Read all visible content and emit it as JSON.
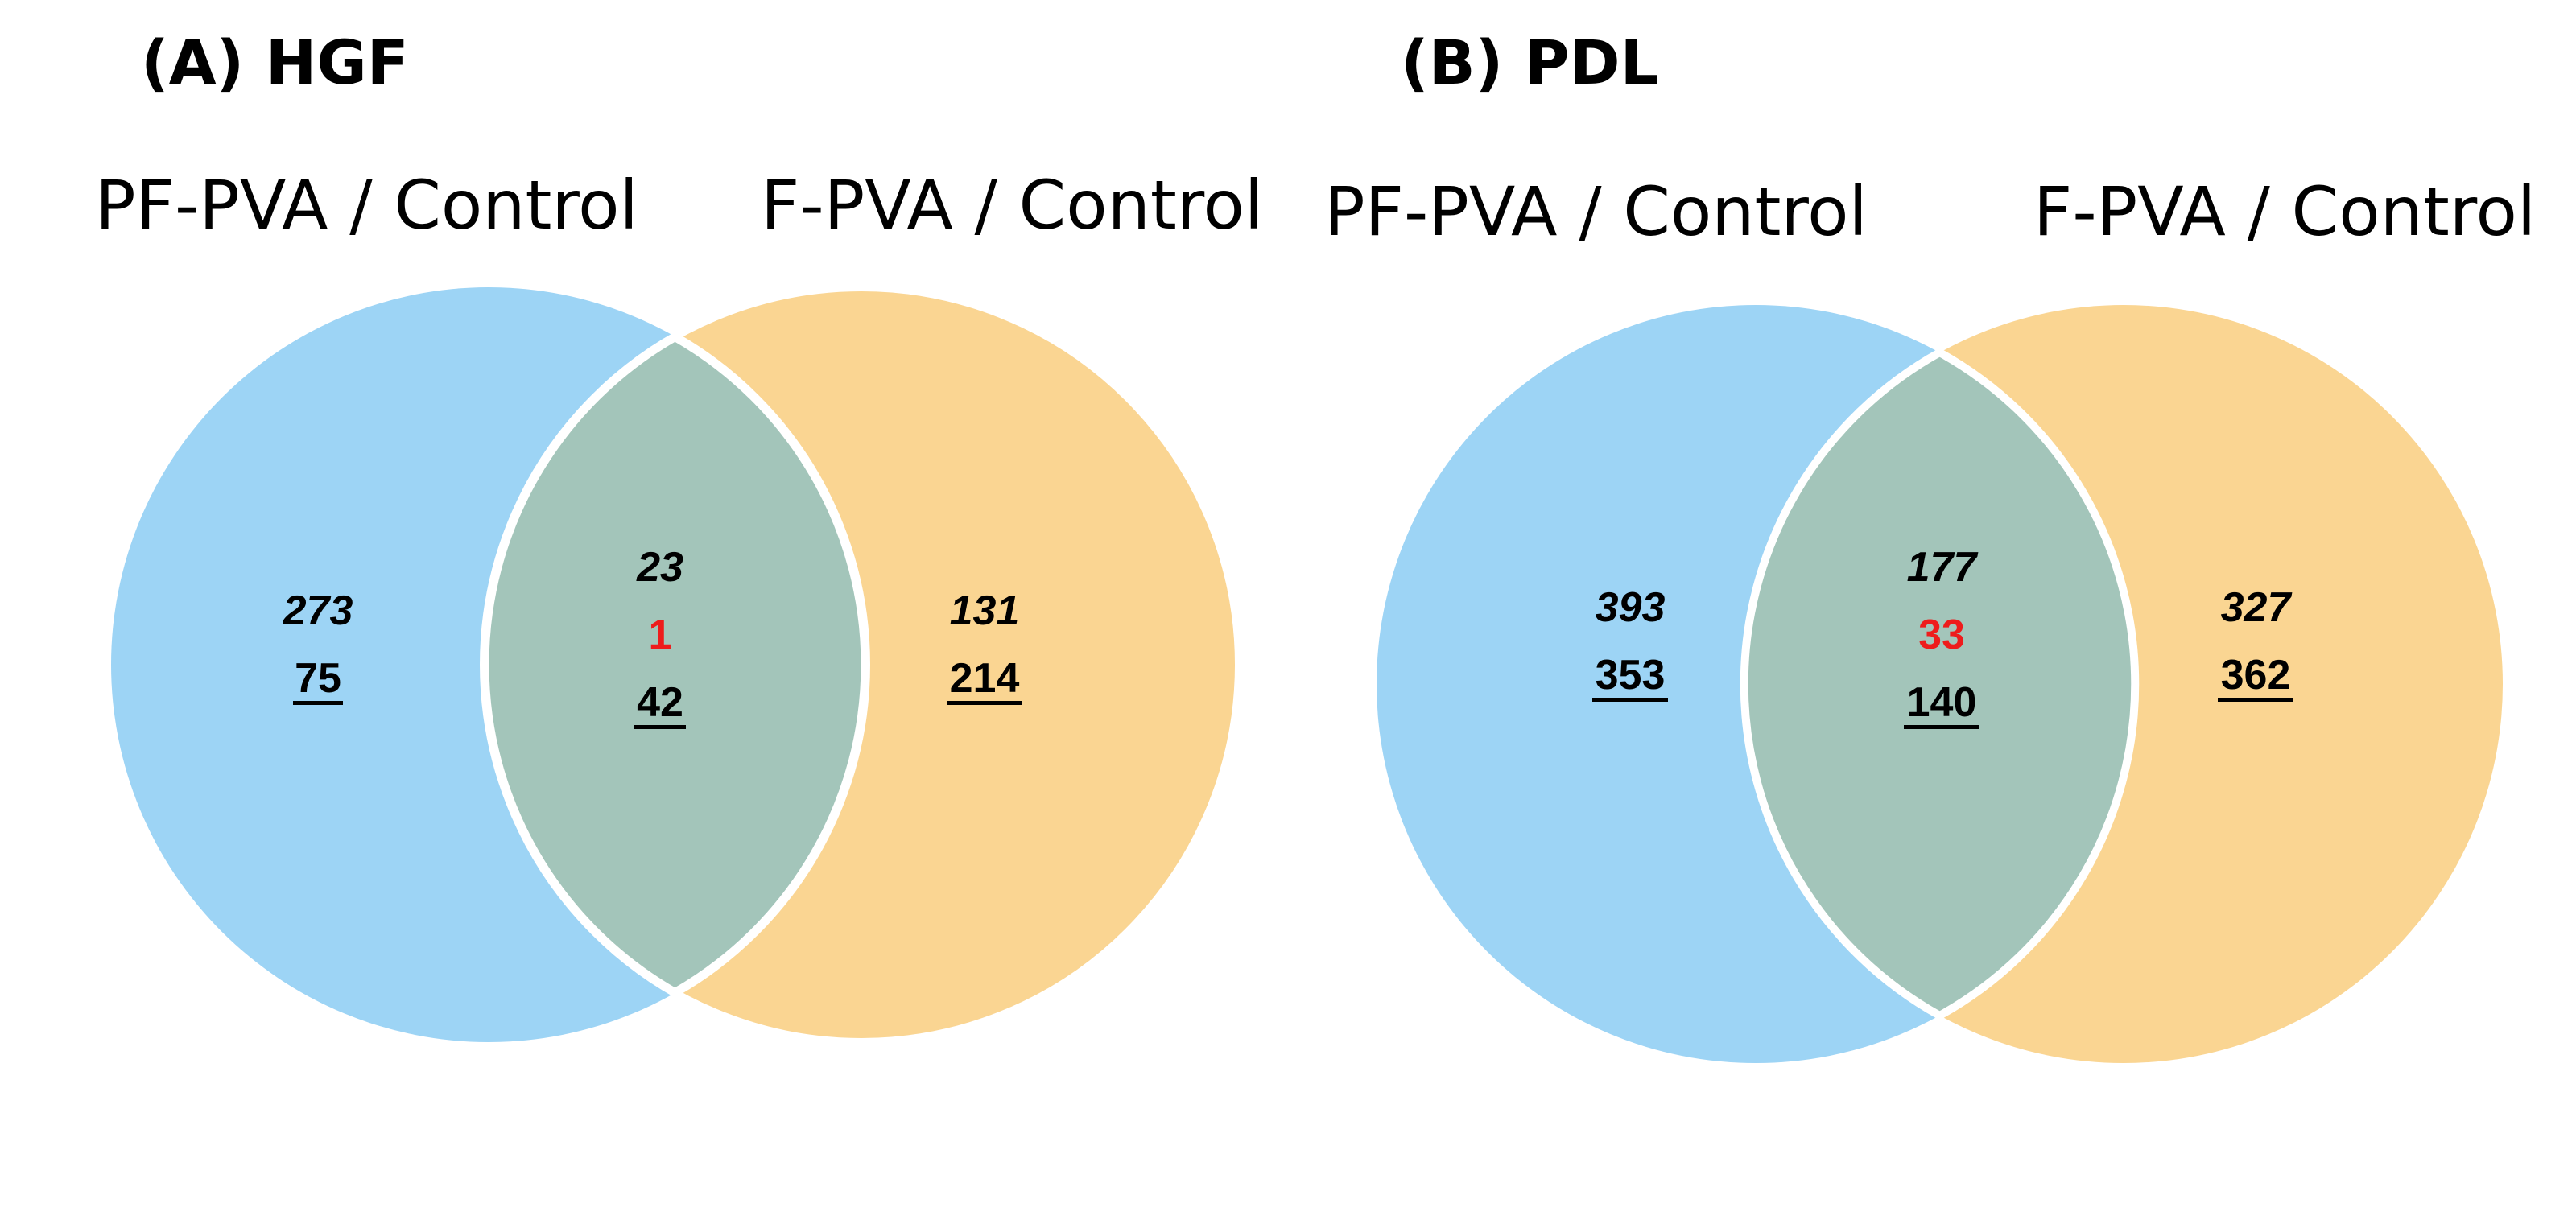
{
  "panels": [
    {
      "title": "(A) HGF",
      "left_label": "PF-PVA / Control",
      "right_label": "F-PVA / Control",
      "left": {
        "italic": "273",
        "underlined": "75"
      },
      "overlap": {
        "italic": "23",
        "red": "1",
        "underlined": "42"
      },
      "right": {
        "italic": "131",
        "underlined": "214"
      }
    },
    {
      "title": "(B) PDL",
      "left_label": "PF-PVA / Control",
      "right_label": "F-PVA / Control",
      "left": {
        "italic": "393",
        "underlined": "353"
      },
      "overlap": {
        "italic": "177",
        "red": "33",
        "underlined": "140"
      },
      "right": {
        "italic": "327",
        "underlined": "362"
      }
    }
  ],
  "colors": {
    "left_circle": "#9dd4f5",
    "right_circle": "#fad592",
    "overlap": "#a3c5ba",
    "highlight_number": "#ee1c1c"
  }
}
